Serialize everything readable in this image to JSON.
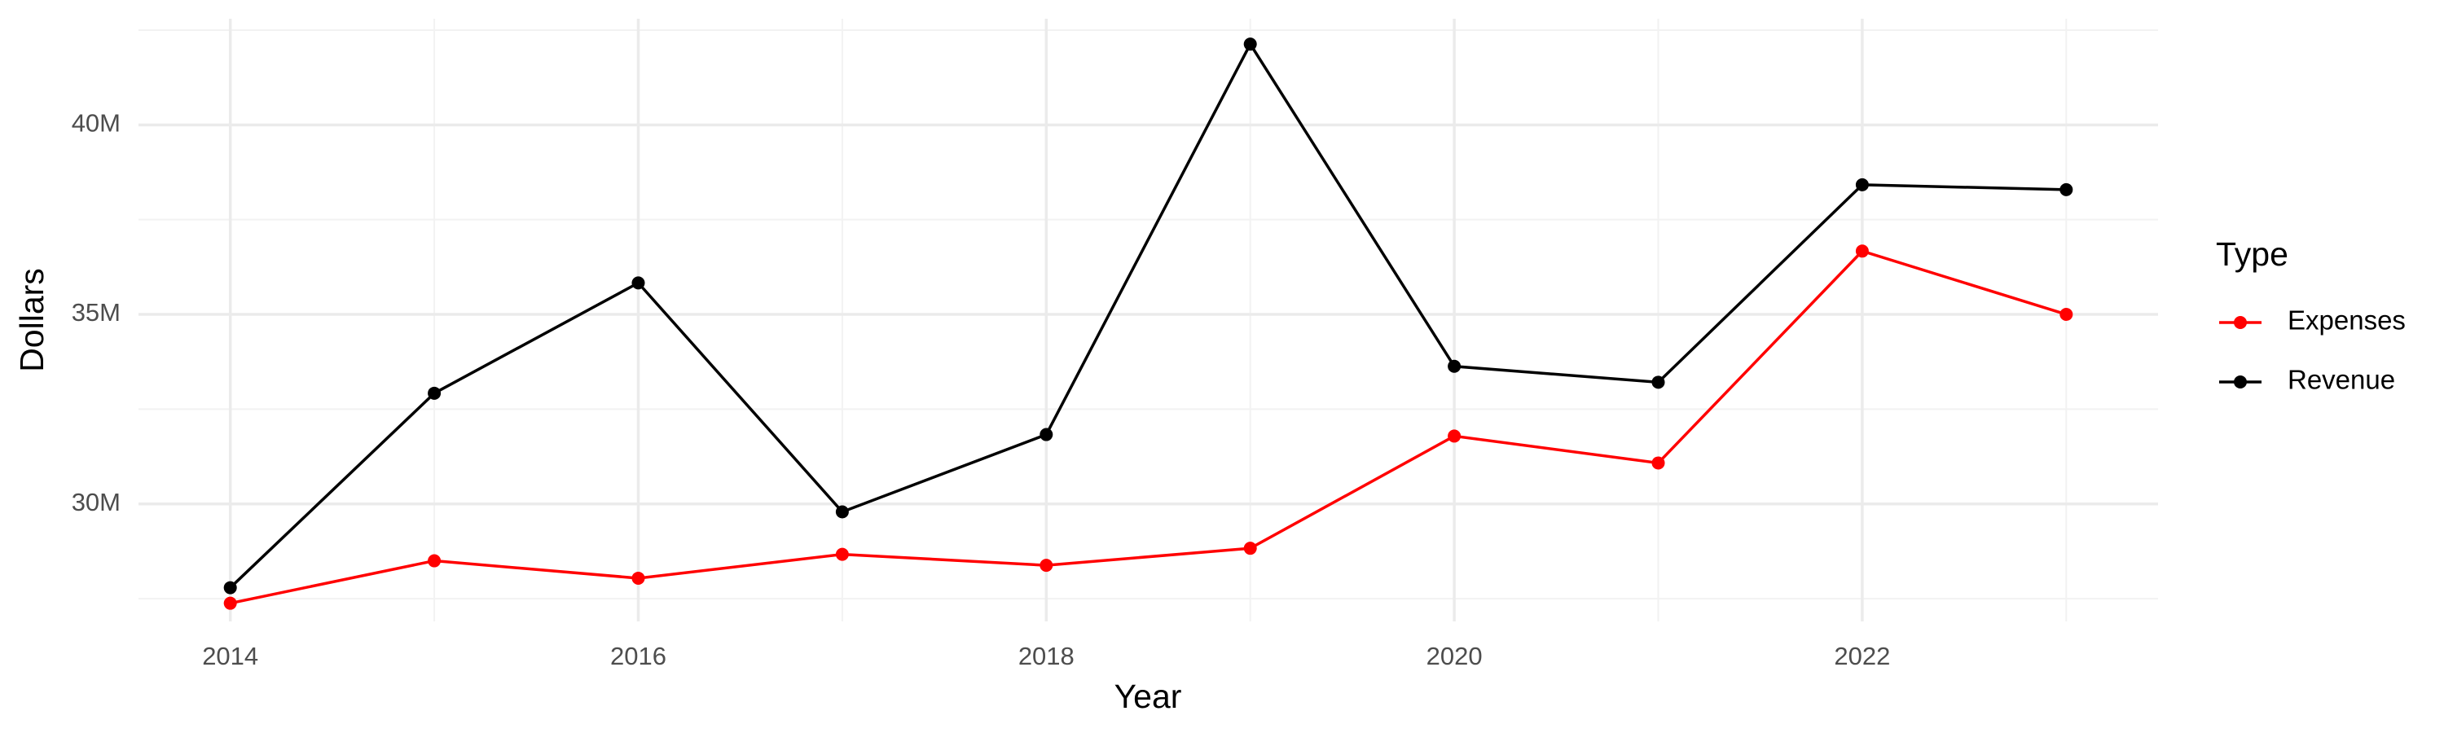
{
  "chart_data": {
    "type": "line",
    "x_label": "Year",
    "y_label": "Dollars",
    "legend_title": "Type",
    "x": [
      2014,
      2015,
      2016,
      2017,
      2018,
      2019,
      2020,
      2021,
      2022,
      2023
    ],
    "series": [
      {
        "name": "Expenses",
        "color": "#ff0000",
        "values": [
          27380000,
          28500000,
          28040000,
          28670000,
          28380000,
          28830000,
          31790000,
          31080000,
          36670000,
          35000000
        ]
      },
      {
        "name": "Revenue",
        "color": "#000000",
        "values": [
          27790000,
          32920000,
          35830000,
          29790000,
          31830000,
          42130000,
          33630000,
          33210000,
          38420000,
          38290000
        ]
      }
    ],
    "xlim": [
      2013.55,
      2023.45
    ],
    "xticks": [
      2014,
      2016,
      2018,
      2020,
      2022
    ],
    "ylim": [
      26900000,
      42800000
    ],
    "yticks": [
      {
        "value": 30000000,
        "label": "30M"
      },
      {
        "value": 35000000,
        "label": "35M"
      },
      {
        "value": 40000000,
        "label": "40M"
      }
    ],
    "grid": true,
    "legend_position": "right"
  }
}
